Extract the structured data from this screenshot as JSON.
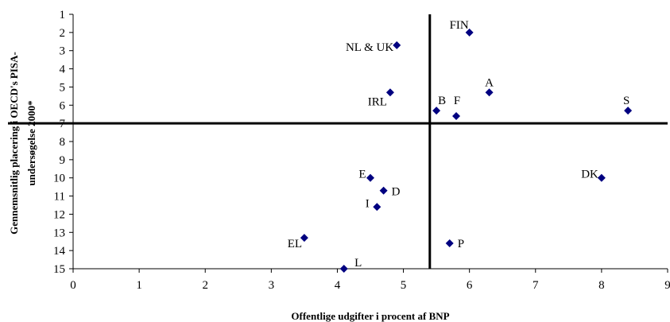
{
  "chart_data": {
    "type": "scatter",
    "xlabel": "Offentlige udgifter i procent af BNP",
    "ylabel_lines": [
      "Gennemsnitlig placering i OECD's PISA-",
      "undersøgelse 2000*"
    ],
    "xlim": [
      0,
      9
    ],
    "ylim": [
      1,
      15
    ],
    "y_reversed": true,
    "x_ticks": [
      "0",
      "1",
      "2",
      "3",
      "4",
      "5",
      "6",
      "7",
      "8",
      "9"
    ],
    "y_ticks": [
      "1",
      "2",
      "3",
      "4",
      "5",
      "6",
      "7",
      "8",
      "9",
      "10",
      "11",
      "12",
      "13",
      "14",
      "15"
    ],
    "marker_color": "#000080",
    "reference_lines": {
      "x": 5.4,
      "y": 7
    },
    "points": [
      {
        "label": "FIN",
        "x": 6.0,
        "y": 2.0
      },
      {
        "label": "NL & UK",
        "x": 4.9,
        "y": 2.7
      },
      {
        "label": "A",
        "x": 6.3,
        "y": 5.3
      },
      {
        "label": "IRL",
        "x": 4.8,
        "y": 5.3
      },
      {
        "label": "B",
        "x": 5.5,
        "y": 6.3
      },
      {
        "label": "F",
        "x": 5.8,
        "y": 6.6
      },
      {
        "label": "S",
        "x": 8.4,
        "y": 6.3
      },
      {
        "label": "E",
        "x": 4.5,
        "y": 10.0
      },
      {
        "label": "DK",
        "x": 8.0,
        "y": 10.0
      },
      {
        "label": "D",
        "x": 4.7,
        "y": 10.7
      },
      {
        "label": "I",
        "x": 4.6,
        "y": 11.6
      },
      {
        "label": "EL",
        "x": 3.5,
        "y": 13.3
      },
      {
        "label": "P",
        "x": 5.7,
        "y": 13.6
      },
      {
        "label": "L",
        "x": 4.1,
        "y": 15.0
      }
    ]
  }
}
